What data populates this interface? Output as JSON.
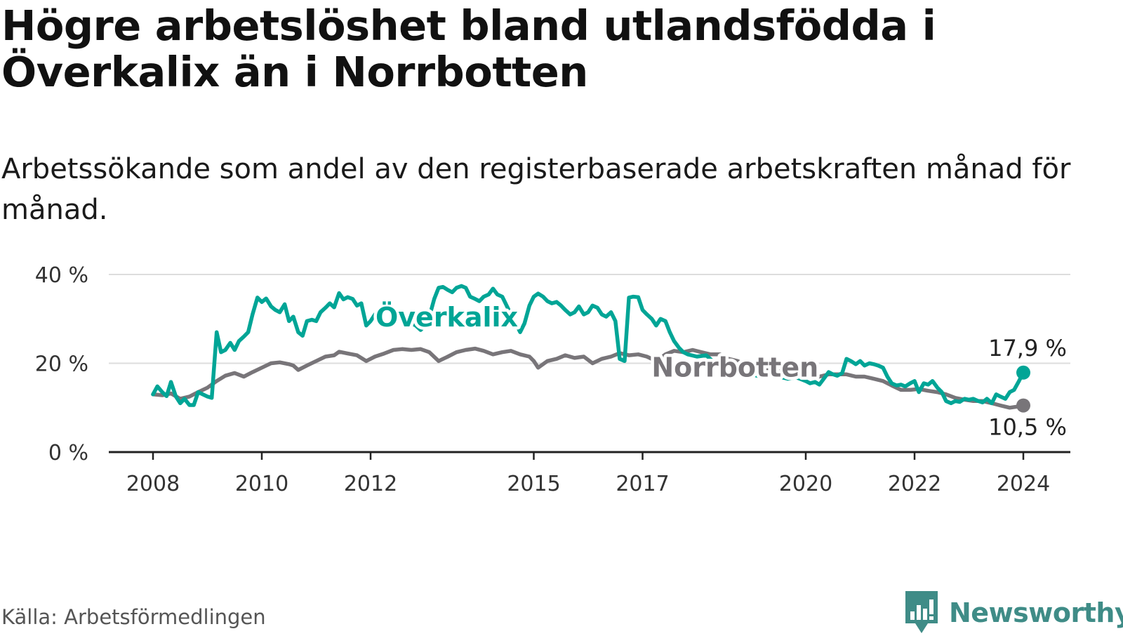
{
  "title": "Högre arbetslöshet bland utlandsfödda i Överkalix än i Norrbotten",
  "subtitle": "Arbetssökande som andel av den registerbaserade arbetskraften månad för månad.",
  "source": "Källa: Arbetsförmedlingen",
  "brand": {
    "name": "Newsworthy",
    "color": "#3f8c87"
  },
  "chart_data": {
    "type": "line",
    "title": "Högre arbetslöshet bland utlandsfödda i Överkalix än i Norrbotten",
    "xlabel": "",
    "ylabel": "",
    "x_range": [
      2008.0,
      2024.0
    ],
    "ylim": [
      0,
      40
    ],
    "y_ticks": [
      {
        "value": 0,
        "label": "0 %"
      },
      {
        "value": 20,
        "label": "20 %"
      },
      {
        "value": 40,
        "label": "40 %"
      }
    ],
    "x_ticks": [
      {
        "value": 2008,
        "label": "2008"
      },
      {
        "value": 2010,
        "label": "2010"
      },
      {
        "value": 2012,
        "label": "2012"
      },
      {
        "value": 2015,
        "label": "2015"
      },
      {
        "value": 2017,
        "label": "2017"
      },
      {
        "value": 2020,
        "label": "2020"
      },
      {
        "value": 2022,
        "label": "2022"
      },
      {
        "value": 2024,
        "label": "2024"
      }
    ],
    "grid": true,
    "series": [
      {
        "name": "Överkalix",
        "color": "#00a596",
        "label_year": 2013.4,
        "label_value": 30.5,
        "end_label": "17,9 %",
        "end_label_pos": "above",
        "points": [
          [
            2008.0,
            13.0
          ],
          [
            2008.08,
            14.8
          ],
          [
            2008.17,
            13.5
          ],
          [
            2008.25,
            12.6
          ],
          [
            2008.33,
            15.8
          ],
          [
            2008.42,
            12.5
          ],
          [
            2008.5,
            11.0
          ],
          [
            2008.58,
            12.0
          ],
          [
            2008.67,
            10.6
          ],
          [
            2008.75,
            10.6
          ],
          [
            2008.83,
            13.5
          ],
          [
            2009.0,
            12.5
          ],
          [
            2009.08,
            12.2
          ],
          [
            2009.17,
            27.0
          ],
          [
            2009.25,
            22.5
          ],
          [
            2009.33,
            23.0
          ],
          [
            2009.42,
            24.6
          ],
          [
            2009.5,
            23.0
          ],
          [
            2009.58,
            25.0
          ],
          [
            2009.67,
            26.0
          ],
          [
            2009.75,
            27.0
          ],
          [
            2009.83,
            31.0
          ],
          [
            2009.92,
            34.8
          ],
          [
            2010.0,
            33.8
          ],
          [
            2010.08,
            34.6
          ],
          [
            2010.17,
            32.8
          ],
          [
            2010.25,
            32.0
          ],
          [
            2010.33,
            31.5
          ],
          [
            2010.42,
            33.3
          ],
          [
            2010.5,
            29.5
          ],
          [
            2010.58,
            30.5
          ],
          [
            2010.67,
            27.0
          ],
          [
            2010.75,
            26.2
          ],
          [
            2010.83,
            29.5
          ],
          [
            2010.92,
            29.8
          ],
          [
            2011.0,
            29.5
          ],
          [
            2011.08,
            31.5
          ],
          [
            2011.17,
            32.5
          ],
          [
            2011.25,
            33.5
          ],
          [
            2011.33,
            32.6
          ],
          [
            2011.42,
            35.8
          ],
          [
            2011.5,
            34.4
          ],
          [
            2011.58,
            34.9
          ],
          [
            2011.67,
            34.5
          ],
          [
            2011.75,
            33.0
          ],
          [
            2011.83,
            33.5
          ],
          [
            2011.92,
            28.5
          ],
          [
            2012.0,
            29.5
          ],
          [
            2012.08,
            31.0
          ],
          [
            2012.17,
            31.8
          ],
          [
            2012.25,
            33.2
          ],
          [
            2012.33,
            32.5
          ],
          [
            2012.42,
            31.5
          ],
          [
            2012.5,
            31.8
          ],
          [
            2012.58,
            31.0
          ],
          [
            2012.67,
            30.0
          ],
          [
            2012.75,
            29.0
          ],
          [
            2012.83,
            28.5
          ],
          [
            2012.92,
            27.5
          ],
          [
            2013.0,
            28.5
          ],
          [
            2013.08,
            30.5
          ],
          [
            2013.17,
            34.5
          ],
          [
            2013.25,
            37.0
          ],
          [
            2013.33,
            37.2
          ],
          [
            2013.42,
            36.5
          ],
          [
            2013.5,
            36.0
          ],
          [
            2013.58,
            37.0
          ],
          [
            2013.67,
            37.4
          ],
          [
            2013.75,
            37.0
          ],
          [
            2013.83,
            35.0
          ],
          [
            2013.92,
            34.5
          ],
          [
            2014.0,
            34.0
          ],
          [
            2014.08,
            35.0
          ],
          [
            2014.17,
            35.5
          ],
          [
            2014.25,
            36.8
          ],
          [
            2014.33,
            35.5
          ],
          [
            2014.42,
            35.0
          ],
          [
            2014.5,
            33.0
          ],
          [
            2014.58,
            31.0
          ],
          [
            2014.67,
            29.0
          ],
          [
            2014.75,
            27.0
          ],
          [
            2014.83,
            29.0
          ],
          [
            2014.92,
            33.0
          ],
          [
            2015.0,
            35.0
          ],
          [
            2015.08,
            35.7
          ],
          [
            2015.17,
            35.0
          ],
          [
            2015.25,
            34.0
          ],
          [
            2015.33,
            33.5
          ],
          [
            2015.42,
            33.8
          ],
          [
            2015.5,
            33.0
          ],
          [
            2015.58,
            32.0
          ],
          [
            2015.67,
            31.0
          ],
          [
            2015.75,
            31.5
          ],
          [
            2015.83,
            32.8
          ],
          [
            2015.92,
            31.0
          ],
          [
            2016.0,
            31.5
          ],
          [
            2016.08,
            33.0
          ],
          [
            2016.17,
            32.5
          ],
          [
            2016.25,
            31.0
          ],
          [
            2016.33,
            30.5
          ],
          [
            2016.42,
            31.5
          ],
          [
            2016.5,
            29.5
          ],
          [
            2016.58,
            21.0
          ],
          [
            2016.67,
            20.5
          ],
          [
            2016.75,
            34.8
          ],
          [
            2016.83,
            35.0
          ],
          [
            2016.92,
            34.9
          ],
          [
            2017.0,
            32.0
          ],
          [
            2017.08,
            31.0
          ],
          [
            2017.17,
            30.0
          ],
          [
            2017.25,
            28.5
          ],
          [
            2017.33,
            30.0
          ],
          [
            2017.42,
            29.5
          ],
          [
            2017.5,
            27.0
          ],
          [
            2017.58,
            25.0
          ],
          [
            2017.67,
            23.5
          ],
          [
            2017.75,
            22.5
          ],
          [
            2017.83,
            22.0
          ],
          [
            2018.0,
            21.5
          ],
          [
            2018.17,
            21.8
          ],
          [
            2018.33,
            20.0
          ],
          [
            2018.5,
            19.0
          ],
          [
            2018.67,
            18.5
          ],
          [
            2018.83,
            18.0
          ],
          [
            2019.0,
            17.5
          ],
          [
            2019.17,
            17.0
          ],
          [
            2019.33,
            17.5
          ],
          [
            2019.5,
            17.0
          ],
          [
            2019.67,
            16.5
          ],
          [
            2019.83,
            16.8
          ],
          [
            2020.0,
            16.0
          ],
          [
            2020.08,
            15.5
          ],
          [
            2020.17,
            15.8
          ],
          [
            2020.25,
            15.2
          ],
          [
            2020.33,
            16.5
          ],
          [
            2020.42,
            18.0
          ],
          [
            2020.5,
            17.5
          ],
          [
            2020.58,
            17.2
          ],
          [
            2020.67,
            17.8
          ],
          [
            2020.75,
            21.0
          ],
          [
            2020.83,
            20.5
          ],
          [
            2020.92,
            19.8
          ],
          [
            2021.0,
            20.5
          ],
          [
            2021.08,
            19.5
          ],
          [
            2021.17,
            20.0
          ],
          [
            2021.25,
            19.8
          ],
          [
            2021.33,
            19.5
          ],
          [
            2021.42,
            19.0
          ],
          [
            2021.5,
            17.0
          ],
          [
            2021.58,
            15.5
          ],
          [
            2021.67,
            15.0
          ],
          [
            2021.75,
            15.2
          ],
          [
            2021.83,
            14.8
          ],
          [
            2021.92,
            15.5
          ],
          [
            2022.0,
            16.0
          ],
          [
            2022.08,
            13.5
          ],
          [
            2022.17,
            15.5
          ],
          [
            2022.25,
            15.2
          ],
          [
            2022.33,
            16.0
          ],
          [
            2022.42,
            14.5
          ],
          [
            2022.5,
            13.5
          ],
          [
            2022.58,
            11.5
          ],
          [
            2022.67,
            11.0
          ],
          [
            2022.75,
            11.5
          ],
          [
            2022.83,
            11.3
          ],
          [
            2022.92,
            12.0
          ],
          [
            2023.0,
            11.8
          ],
          [
            2023.08,
            12.0
          ],
          [
            2023.17,
            11.5
          ],
          [
            2023.25,
            11.2
          ],
          [
            2023.33,
            12.0
          ],
          [
            2023.42,
            11.0
          ],
          [
            2023.5,
            13.0
          ],
          [
            2023.58,
            12.5
          ],
          [
            2023.67,
            12.0
          ],
          [
            2023.75,
            13.5
          ],
          [
            2023.83,
            14.0
          ],
          [
            2023.92,
            16.0
          ],
          [
            2024.0,
            17.9
          ]
        ]
      },
      {
        "name": "Norrbotten",
        "color": "#787579",
        "label_year": 2018.7,
        "label_value": 19.2,
        "end_label": "10,5 %",
        "end_label_pos": "below",
        "points": [
          [
            2008.0,
            13.0
          ],
          [
            2008.17,
            12.8
          ],
          [
            2008.33,
            13.2
          ],
          [
            2008.5,
            12.0
          ],
          [
            2008.67,
            12.5
          ],
          [
            2008.83,
            13.5
          ],
          [
            2009.0,
            14.5
          ],
          [
            2009.17,
            16.0
          ],
          [
            2009.33,
            17.2
          ],
          [
            2009.5,
            17.8
          ],
          [
            2009.67,
            17.0
          ],
          [
            2009.83,
            18.0
          ],
          [
            2010.0,
            19.0
          ],
          [
            2010.17,
            20.0
          ],
          [
            2010.33,
            20.2
          ],
          [
            2010.5,
            19.8
          ],
          [
            2010.58,
            19.5
          ],
          [
            2010.67,
            18.5
          ],
          [
            2010.83,
            19.5
          ],
          [
            2011.0,
            20.5
          ],
          [
            2011.17,
            21.5
          ],
          [
            2011.33,
            21.8
          ],
          [
            2011.42,
            22.6
          ],
          [
            2011.58,
            22.2
          ],
          [
            2011.75,
            21.8
          ],
          [
            2011.92,
            20.5
          ],
          [
            2012.08,
            21.5
          ],
          [
            2012.25,
            22.2
          ],
          [
            2012.42,
            23.0
          ],
          [
            2012.58,
            23.2
          ],
          [
            2012.75,
            23.0
          ],
          [
            2012.92,
            23.2
          ],
          [
            2013.08,
            22.5
          ],
          [
            2013.25,
            20.5
          ],
          [
            2013.42,
            21.5
          ],
          [
            2013.58,
            22.5
          ],
          [
            2013.75,
            23.0
          ],
          [
            2013.92,
            23.3
          ],
          [
            2014.08,
            22.8
          ],
          [
            2014.25,
            22.0
          ],
          [
            2014.42,
            22.5
          ],
          [
            2014.58,
            22.8
          ],
          [
            2014.75,
            22.0
          ],
          [
            2014.92,
            21.5
          ],
          [
            2015.0,
            20.5
          ],
          [
            2015.08,
            19.0
          ],
          [
            2015.25,
            20.5
          ],
          [
            2015.42,
            21.0
          ],
          [
            2015.58,
            21.8
          ],
          [
            2015.75,
            21.2
          ],
          [
            2015.92,
            21.5
          ],
          [
            2016.08,
            20.0
          ],
          [
            2016.25,
            21.0
          ],
          [
            2016.42,
            21.5
          ],
          [
            2016.58,
            22.3
          ],
          [
            2016.75,
            21.8
          ],
          [
            2016.92,
            22.0
          ],
          [
            2017.08,
            21.5
          ],
          [
            2017.25,
            20.5
          ],
          [
            2017.42,
            22.0
          ],
          [
            2017.58,
            22.8
          ],
          [
            2017.75,
            22.5
          ],
          [
            2017.92,
            23.0
          ],
          [
            2018.08,
            22.5
          ],
          [
            2018.25,
            22.0
          ],
          [
            2018.42,
            22.0
          ],
          [
            2018.58,
            21.0
          ],
          [
            2018.75,
            20.5
          ],
          [
            2018.92,
            19.5
          ],
          [
            2019.08,
            19.0
          ],
          [
            2019.25,
            18.8
          ],
          [
            2019.42,
            18.5
          ],
          [
            2019.58,
            18.0
          ],
          [
            2019.75,
            17.5
          ],
          [
            2019.92,
            17.5
          ],
          [
            2020.08,
            17.0
          ],
          [
            2020.25,
            17.0
          ],
          [
            2020.42,
            17.5
          ],
          [
            2020.58,
            17.5
          ],
          [
            2020.75,
            17.5
          ],
          [
            2020.92,
            17.0
          ],
          [
            2021.08,
            17.0
          ],
          [
            2021.25,
            16.5
          ],
          [
            2021.42,
            16.0
          ],
          [
            2021.58,
            15.0
          ],
          [
            2021.75,
            14.0
          ],
          [
            2021.92,
            14.0
          ],
          [
            2022.08,
            14.2
          ],
          [
            2022.25,
            13.8
          ],
          [
            2022.42,
            13.5
          ],
          [
            2022.58,
            13.0
          ],
          [
            2022.75,
            12.2
          ],
          [
            2022.92,
            11.8
          ],
          [
            2023.08,
            11.5
          ],
          [
            2023.25,
            11.5
          ],
          [
            2023.42,
            11.0
          ],
          [
            2023.58,
            10.5
          ],
          [
            2023.75,
            10.0
          ],
          [
            2023.92,
            10.3
          ],
          [
            2024.0,
            10.5
          ]
        ]
      }
    ]
  }
}
